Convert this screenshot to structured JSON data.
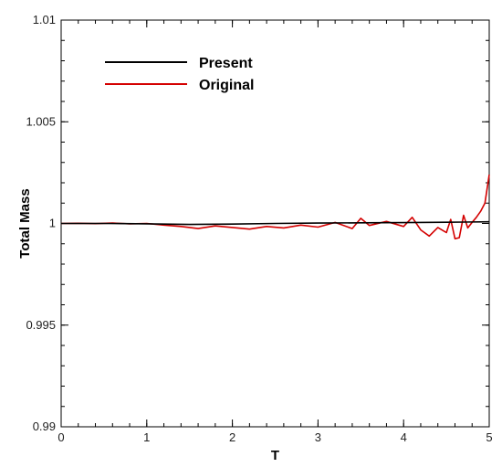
{
  "chart_data": {
    "type": "line",
    "title": "",
    "xlabel": "T",
    "ylabel": "Total Mass",
    "xlim": [
      0,
      5
    ],
    "ylim": [
      0.99,
      1.01
    ],
    "xticks": [
      "0",
      "1",
      "2",
      "3",
      "4",
      "5"
    ],
    "yticks": [
      "0.99",
      "0.995",
      "1",
      "1.005",
      "1.01"
    ],
    "grid": false,
    "legend_position": "top-left",
    "series": [
      {
        "name": "Present",
        "color": "#000000",
        "x": [
          0,
          0.5,
          1.0,
          1.5,
          2.0,
          2.5,
          3.0,
          3.5,
          4.0,
          4.5,
          5.0
        ],
        "y": [
          1.0,
          1.0,
          0.99998,
          0.99995,
          0.99997,
          1.0,
          1.00002,
          1.00003,
          1.00004,
          1.00006,
          1.00008
        ]
      },
      {
        "name": "Original",
        "color": "#d40000",
        "x": [
          0,
          0.2,
          0.4,
          0.6,
          0.8,
          1.0,
          1.2,
          1.4,
          1.6,
          1.8,
          2.0,
          2.2,
          2.4,
          2.6,
          2.8,
          3.0,
          3.2,
          3.4,
          3.5,
          3.6,
          3.8,
          4.0,
          4.1,
          4.2,
          4.3,
          4.4,
          4.5,
          4.55,
          4.6,
          4.65,
          4.7,
          4.75,
          4.8,
          4.85,
          4.9,
          4.95,
          5.0
        ],
        "y": [
          1.0,
          1.00001,
          0.99999,
          1.00002,
          0.99998,
          1.0,
          0.99992,
          0.99985,
          0.99975,
          0.99988,
          0.9998,
          0.99972,
          0.99985,
          0.99978,
          0.99992,
          0.99982,
          1.00005,
          0.99975,
          1.00025,
          0.9999,
          1.0001,
          0.99985,
          1.0003,
          0.99968,
          0.99938,
          0.9998,
          0.99955,
          1.0002,
          0.99925,
          0.9993,
          1.0004,
          0.99978,
          1.00005,
          1.0003,
          1.0006,
          1.001,
          1.0024
        ]
      }
    ]
  }
}
